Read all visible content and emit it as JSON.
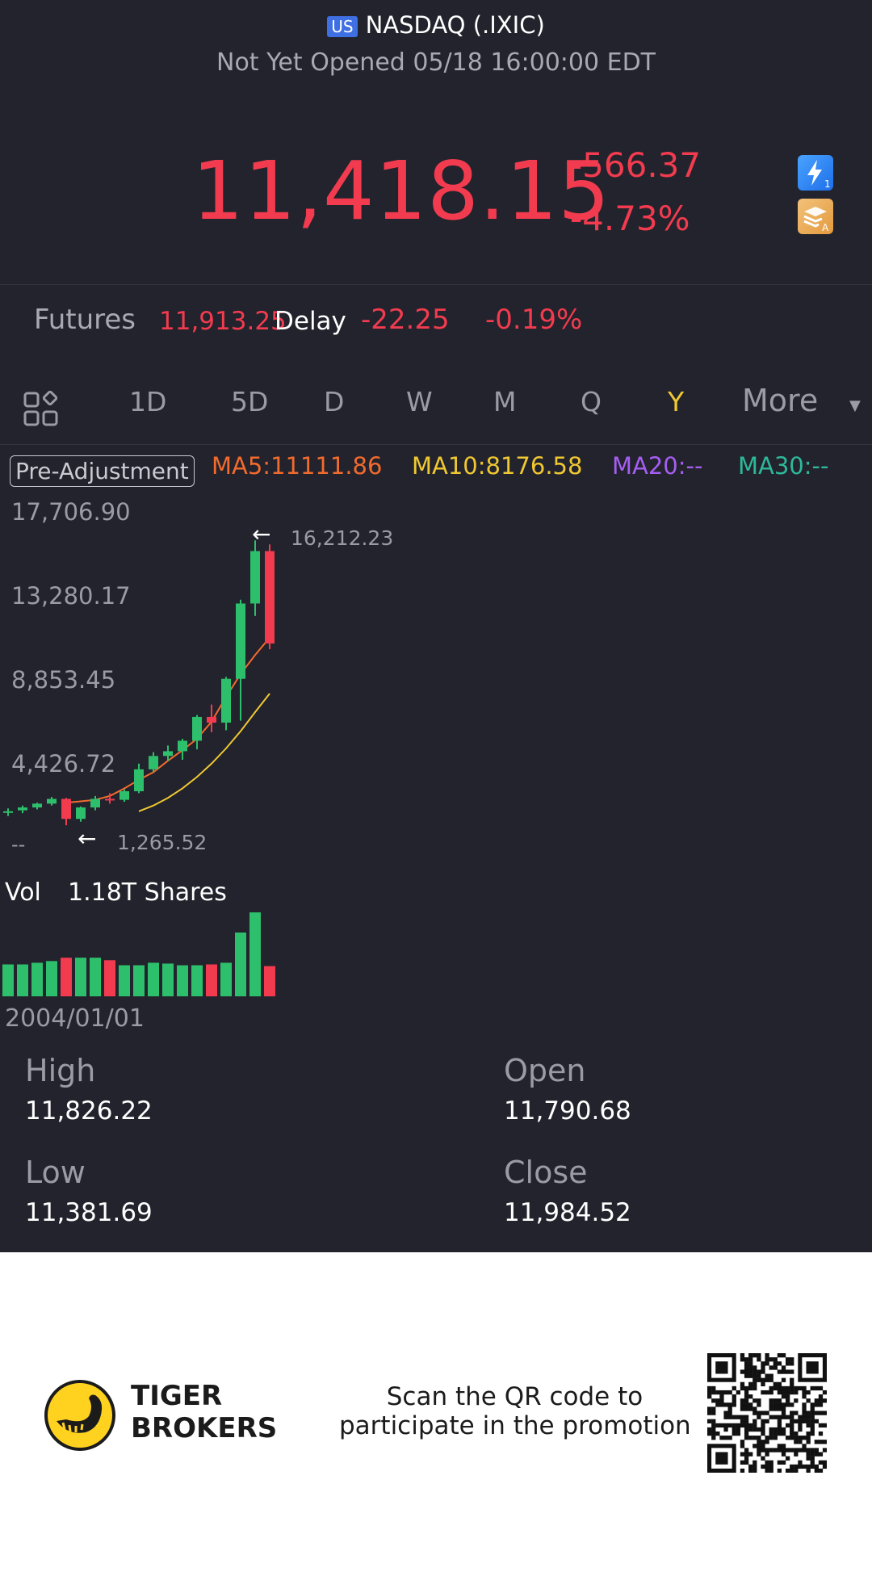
{
  "header": {
    "region_badge": "US",
    "title": "NASDAQ (.IXIC)",
    "status": "Not Yet Opened 05/18 16:00:00 EDT"
  },
  "quote": {
    "price": "11,418.15",
    "change": "-566.37",
    "change_pct": "-4.73%",
    "icons": [
      "lightning-level-1-icon",
      "stack-a-icon"
    ]
  },
  "futures": {
    "label": "Futures",
    "price": "11,913.25",
    "delay_label": "Delay",
    "change": "-22.25",
    "change_pct": "-0.19%"
  },
  "tabs": {
    "grid_icon": "grid-icon",
    "items": [
      "1D",
      "5D",
      "D",
      "W",
      "M",
      "Q",
      "Y",
      "More"
    ],
    "active": "Y"
  },
  "indicators": {
    "adjustment": "Pre-Adjustment",
    "ma5": "MA5:11111.86",
    "ma10": "MA10:8176.58",
    "ma20": "MA20:--",
    "ma30": "MA30:--"
  },
  "colors": {
    "up": "#2ebf6c",
    "down": "#f23b4f",
    "ma5": "#f26b2e",
    "ma10": "#f0c832",
    "ma20": "#a55ef2",
    "ma30": "#2eb89a",
    "active_tab": "#f0c832"
  },
  "chart": {
    "y_ticks": [
      "17,706.90",
      "13,280.17",
      "8,853.45",
      "4,426.72",
      "--"
    ],
    "max_label": "16,212.23",
    "min_label": "1,265.52",
    "volume_label": "Vol",
    "volume_value": "1.18T Shares",
    "start_date": "2004/01/01"
  },
  "chart_data": {
    "type": "candlestick",
    "y_range": [
      0,
      17706.9
    ],
    "candles": [
      {
        "o": 2000,
        "h": 2150,
        "l": 1750,
        "c": 2000,
        "dir": "up"
      },
      {
        "o": 2050,
        "h": 2300,
        "l": 1900,
        "c": 2200,
        "dir": "up"
      },
      {
        "o": 2200,
        "h": 2450,
        "l": 2100,
        "c": 2400,
        "dir": "up"
      },
      {
        "o": 2400,
        "h": 2750,
        "l": 2300,
        "c": 2650,
        "dir": "up"
      },
      {
        "o": 2650,
        "h": 2700,
        "l": 1265.52,
        "c": 1600,
        "dir": "down"
      },
      {
        "o": 1600,
        "h": 2250,
        "l": 1450,
        "c": 2200,
        "dir": "up"
      },
      {
        "o": 2200,
        "h": 2800,
        "l": 2050,
        "c": 2650,
        "dir": "up"
      },
      {
        "o": 2650,
        "h": 2950,
        "l": 2400,
        "c": 2600,
        "dir": "down"
      },
      {
        "o": 2600,
        "h": 3150,
        "l": 2500,
        "c": 3050,
        "dir": "up"
      },
      {
        "o": 3050,
        "h": 4500,
        "l": 2950,
        "c": 4200,
        "dir": "up"
      },
      {
        "o": 4200,
        "h": 5100,
        "l": 4050,
        "c": 4900,
        "dir": "up"
      },
      {
        "o": 4900,
        "h": 5450,
        "l": 4650,
        "c": 5150,
        "dir": "up"
      },
      {
        "o": 5150,
        "h": 5800,
        "l": 4700,
        "c": 5700,
        "dir": "up"
      },
      {
        "o": 5700,
        "h": 7050,
        "l": 5250,
        "c": 6950,
        "dir": "up"
      },
      {
        "o": 6950,
        "h": 7600,
        "l": 6150,
        "c": 6650,
        "dir": "down"
      },
      {
        "o": 6650,
        "h": 9050,
        "l": 6250,
        "c": 8950,
        "dir": "up"
      },
      {
        "o": 8950,
        "h": 13100,
        "l": 6750,
        "c": 12900,
        "dir": "up"
      },
      {
        "o": 12900,
        "h": 16212.23,
        "l": 12250,
        "c": 15650,
        "dir": "up"
      },
      {
        "o": 15650,
        "h": 16000,
        "l": 10500,
        "c": 10800,
        "dir": "down"
      }
    ],
    "ma5": [
      2450,
      2520,
      2600,
      2800,
      3200,
      3650,
      4050,
      4650,
      5200,
      5800,
      6700,
      8000,
      9200,
      10200,
      11111.86
    ],
    "ma10": [
      2000,
      2300,
      2700,
      3200,
      3800,
      4500,
      5300,
      6200,
      7200,
      8176.58
    ],
    "volumes": [
      {
        "v": 38,
        "dir": "up"
      },
      {
        "v": 38,
        "dir": "up"
      },
      {
        "v": 40,
        "dir": "up"
      },
      {
        "v": 42,
        "dir": "up"
      },
      {
        "v": 46,
        "dir": "down"
      },
      {
        "v": 46,
        "dir": "up"
      },
      {
        "v": 46,
        "dir": "up"
      },
      {
        "v": 43,
        "dir": "down"
      },
      {
        "v": 37,
        "dir": "up"
      },
      {
        "v": 37,
        "dir": "up"
      },
      {
        "v": 40,
        "dir": "up"
      },
      {
        "v": 39,
        "dir": "up"
      },
      {
        "v": 37,
        "dir": "up"
      },
      {
        "v": 37,
        "dir": "up"
      },
      {
        "v": 38,
        "dir": "down"
      },
      {
        "v": 40,
        "dir": "up"
      },
      {
        "v": 76,
        "dir": "up"
      },
      {
        "v": 100,
        "dir": "up"
      },
      {
        "v": 36,
        "dir": "down"
      }
    ]
  },
  "stats": {
    "high_label": "High",
    "high": "11,826.22",
    "open_label": "Open",
    "open": "11,790.68",
    "low_label": "Low",
    "low": "11,381.69",
    "close_label": "Close",
    "close": "11,984.52"
  },
  "footer": {
    "brand_line1": "TIGER",
    "brand_line2": "BROKERS",
    "promo_line1": "Scan the QR code to",
    "promo_line2": "participate in the promotion"
  }
}
